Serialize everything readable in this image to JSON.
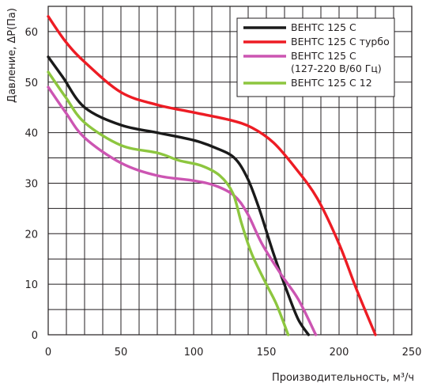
{
  "chart_data": {
    "type": "line",
    "xlabel": "Производительность, м³/ч",
    "ylabel": "Давление, ΔP(Па)",
    "xlim": [
      0,
      250
    ],
    "ylim": [
      0,
      65
    ],
    "x_ticks": [
      "0",
      "50",
      "100",
      "150",
      "200",
      "250"
    ],
    "y_ticks": [
      "0",
      "10",
      "20",
      "30",
      "40",
      "50",
      "60"
    ],
    "grid": true,
    "legend_position": "top-right",
    "series": [
      {
        "name": "ВЕНТС 125 С",
        "color": "#1a1a1a",
        "points": [
          [
            0,
            55
          ],
          [
            10,
            51
          ],
          [
            25,
            45
          ],
          [
            50,
            41.5
          ],
          [
            75,
            40
          ],
          [
            100,
            38.5
          ],
          [
            115,
            37
          ],
          [
            128,
            35
          ],
          [
            137,
            31
          ],
          [
            145,
            25
          ],
          [
            155,
            16
          ],
          [
            165,
            8
          ],
          [
            172,
            3
          ],
          [
            179,
            0
          ]
        ]
      },
      {
        "name": "ВЕНТС 125 С турбо",
        "color": "#ed1c24",
        "points": [
          [
            0,
            63
          ],
          [
            12,
            58
          ],
          [
            25,
            54
          ],
          [
            50,
            48
          ],
          [
            75,
            45.5
          ],
          [
            100,
            44
          ],
          [
            125,
            42.5
          ],
          [
            140,
            41
          ],
          [
            155,
            38
          ],
          [
            170,
            33
          ],
          [
            185,
            27
          ],
          [
            200,
            18
          ],
          [
            212,
            9
          ],
          [
            225,
            0
          ]
        ]
      },
      {
        "name": "ВЕНТС 125 С\n(127-220 В/60 Гц)",
        "color": "#cc55b2",
        "points": [
          [
            0,
            49
          ],
          [
            12,
            44
          ],
          [
            25,
            39
          ],
          [
            50,
            34
          ],
          [
            75,
            31.5
          ],
          [
            100,
            30.5
          ],
          [
            115,
            29.5
          ],
          [
            128,
            27.5
          ],
          [
            137,
            24
          ],
          [
            147,
            18
          ],
          [
            160,
            12
          ],
          [
            172,
            7
          ],
          [
            184,
            0
          ]
        ]
      },
      {
        "name": "ВЕНТС 125 С 12",
        "color": "#8dc63f",
        "points": [
          [
            0,
            52
          ],
          [
            12,
            47
          ],
          [
            25,
            42
          ],
          [
            50,
            37.5
          ],
          [
            75,
            36
          ],
          [
            90,
            34.5
          ],
          [
            105,
            33.5
          ],
          [
            118,
            31.5
          ],
          [
            127,
            28
          ],
          [
            133,
            22
          ],
          [
            140,
            16
          ],
          [
            150,
            10
          ],
          [
            157,
            6
          ],
          [
            165,
            0
          ]
        ]
      }
    ]
  }
}
